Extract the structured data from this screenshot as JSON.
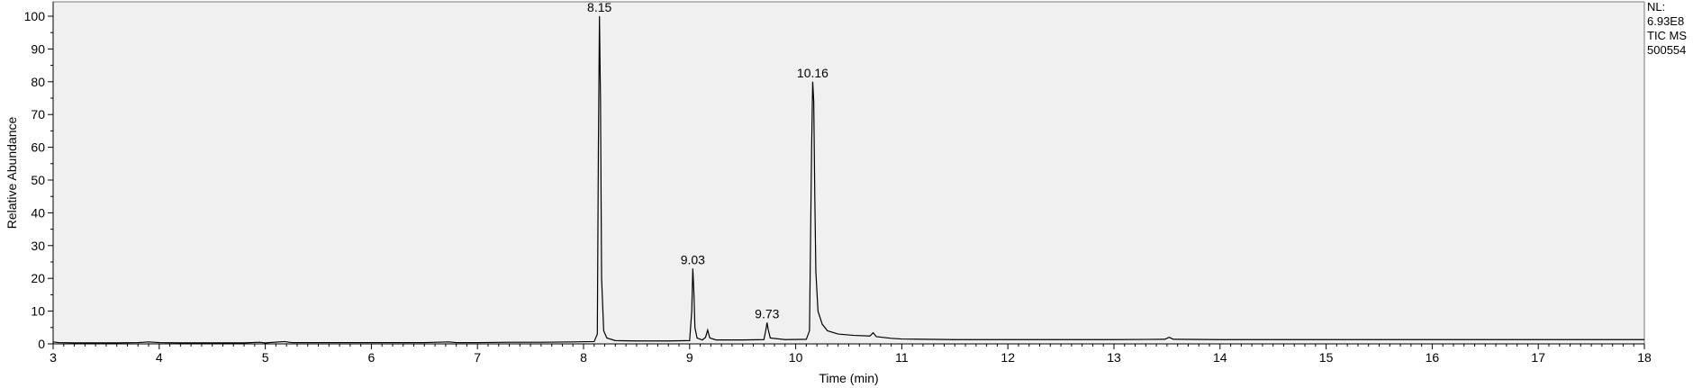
{
  "chart_data": {
    "type": "line",
    "xlabel": "Time (min)",
    "ylabel": "Relative Abundance",
    "xlim": [
      3,
      18
    ],
    "ylim": [
      0,
      100
    ],
    "x_ticks": [
      3,
      4,
      5,
      6,
      7,
      8,
      9,
      10,
      11,
      12,
      13,
      14,
      15,
      16,
      17,
      18
    ],
    "y_ticks": [
      0,
      10,
      20,
      30,
      40,
      50,
      60,
      70,
      80,
      90,
      100
    ],
    "info": [
      "NL:",
      "6.93E8",
      "TIC  MS",
      "500554"
    ],
    "peaks": [
      {
        "label": "8.15",
        "x": 8.15,
        "y": 100
      },
      {
        "label": "9.03",
        "x": 9.03,
        "y": 23
      },
      {
        "label": "9.73",
        "x": 9.73,
        "y": 6.5
      },
      {
        "label": "10.16",
        "x": 10.16,
        "y": 80
      }
    ],
    "series": [
      {
        "values": [
          [
            3.0,
            0.6
          ],
          [
            3.05,
            0.4
          ],
          [
            3.2,
            0.3
          ],
          [
            3.4,
            0.3
          ],
          [
            3.6,
            0.3
          ],
          [
            3.8,
            0.4
          ],
          [
            3.9,
            0.6
          ],
          [
            4.0,
            0.4
          ],
          [
            4.2,
            0.3
          ],
          [
            4.5,
            0.3
          ],
          [
            4.8,
            0.3
          ],
          [
            4.95,
            0.5
          ],
          [
            5.0,
            0.3
          ],
          [
            5.18,
            0.7
          ],
          [
            5.25,
            0.4
          ],
          [
            5.5,
            0.4
          ],
          [
            5.8,
            0.4
          ],
          [
            6.0,
            0.4
          ],
          [
            6.3,
            0.4
          ],
          [
            6.5,
            0.4
          ],
          [
            6.73,
            0.6
          ],
          [
            6.8,
            0.4
          ],
          [
            7.0,
            0.4
          ],
          [
            7.3,
            0.5
          ],
          [
            7.6,
            0.5
          ],
          [
            7.9,
            0.6
          ],
          [
            8.1,
            0.7
          ],
          [
            8.13,
            3.0
          ],
          [
            8.14,
            60
          ],
          [
            8.15,
            100
          ],
          [
            8.16,
            74
          ],
          [
            8.17,
            20
          ],
          [
            8.19,
            4.0
          ],
          [
            8.22,
            1.8
          ],
          [
            8.3,
            1.0
          ],
          [
            8.5,
            0.9
          ],
          [
            8.8,
            0.9
          ],
          [
            9.0,
            1.0
          ],
          [
            9.02,
            10
          ],
          [
            9.03,
            23
          ],
          [
            9.04,
            16
          ],
          [
            9.05,
            5
          ],
          [
            9.07,
            1.8
          ],
          [
            9.12,
            1.2
          ],
          [
            9.15,
            2.0
          ],
          [
            9.17,
            4.2
          ],
          [
            9.19,
            1.8
          ],
          [
            9.25,
            1.2
          ],
          [
            9.5,
            1.2
          ],
          [
            9.7,
            1.3
          ],
          [
            9.72,
            4.5
          ],
          [
            9.73,
            6.5
          ],
          [
            9.74,
            4.5
          ],
          [
            9.76,
            1.8
          ],
          [
            9.9,
            1.3
          ],
          [
            10.1,
            1.4
          ],
          [
            10.13,
            4
          ],
          [
            10.15,
            60
          ],
          [
            10.16,
            80
          ],
          [
            10.17,
            74
          ],
          [
            10.18,
            45
          ],
          [
            10.19,
            22
          ],
          [
            10.21,
            10
          ],
          [
            10.25,
            6
          ],
          [
            10.3,
            4
          ],
          [
            10.4,
            3
          ],
          [
            10.55,
            2.6
          ],
          [
            10.7,
            2.4
          ],
          [
            10.73,
            3.4
          ],
          [
            10.76,
            2.2
          ],
          [
            10.9,
            1.7
          ],
          [
            11.0,
            1.5
          ],
          [
            11.5,
            1.3
          ],
          [
            12.0,
            1.3
          ],
          [
            12.5,
            1.3
          ],
          [
            13.0,
            1.3
          ],
          [
            13.48,
            1.4
          ],
          [
            13.52,
            2.0
          ],
          [
            13.56,
            1.4
          ],
          [
            14.0,
            1.3
          ],
          [
            15.0,
            1.3
          ],
          [
            16.0,
            1.3
          ],
          [
            17.0,
            1.3
          ],
          [
            18.0,
            1.3
          ]
        ]
      }
    ],
    "grid": false,
    "colors": {
      "line": "#000000",
      "plot_bg": "#f0f0f0"
    }
  }
}
